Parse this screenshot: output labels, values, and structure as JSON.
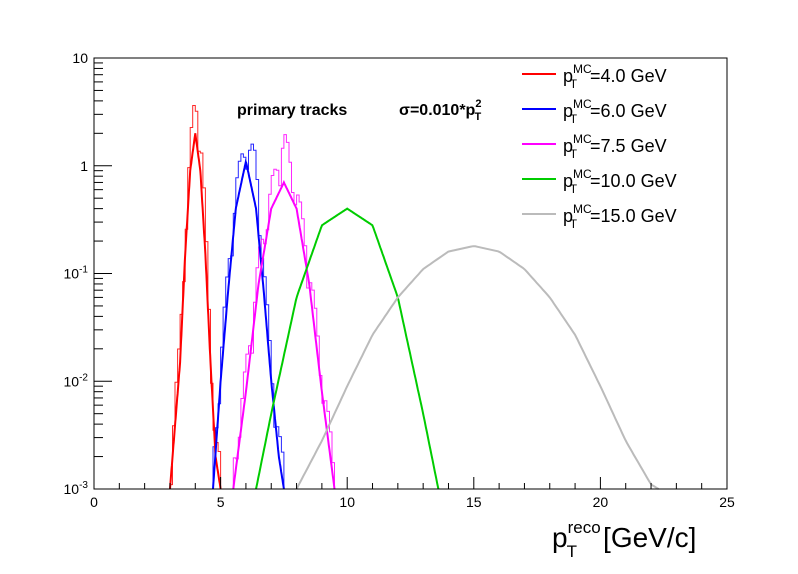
{
  "chart_data": {
    "type": "line",
    "title": "",
    "xlabel_main": "p",
    "xlabel_sup": "reco",
    "xlabel_sub": "T",
    "xlabel_unit": "[GeV/c]",
    "ylabel": "",
    "xlim": [
      0,
      25
    ],
    "ylim": [
      0.001,
      10
    ],
    "yscale": "log",
    "grid": false,
    "legend_position": "top-right",
    "x_ticks": [
      "0",
      "5",
      "10",
      "15",
      "20",
      "25"
    ],
    "y_ticks": [
      {
        "mant": "10",
        "exp": "",
        "value": 10
      },
      {
        "mant": "1",
        "exp": "",
        "value": 1
      },
      {
        "mant": "10",
        "exp": "-1",
        "value": 0.1
      },
      {
        "mant": "10",
        "exp": "-2",
        "value": 0.01
      },
      {
        "mant": "10",
        "exp": "-3",
        "value": 0.001
      }
    ],
    "annotations": {
      "primary": "primary tracks",
      "sigma_label": "σ=0.010*p",
      "sigma_sup": "2",
      "sigma_sub": "T"
    },
    "series": [
      {
        "name_main": "p",
        "name_sup": "MC",
        "name_sub": "T",
        "name_tail": "=4.0 GeV",
        "color": "#ff0000",
        "x": [
          3.0,
          3.4,
          3.6,
          3.8,
          4.0,
          4.2,
          4.4,
          4.6,
          4.8,
          5.0
        ],
        "y": [
          0.001,
          0.015,
          0.15,
          0.9,
          2.0,
          0.9,
          0.15,
          0.015,
          0.002,
          0.001
        ]
      },
      {
        "name_main": "p",
        "name_sup": "MC",
        "name_sub": "T",
        "name_tail": "=6.0 GeV",
        "color": "#0000ff",
        "x": [
          4.7,
          5.0,
          5.3,
          5.6,
          6.0,
          6.4,
          6.7,
          7.0,
          7.3,
          7.5
        ],
        "y": [
          0.001,
          0.01,
          0.07,
          0.4,
          1.1,
          0.4,
          0.07,
          0.01,
          0.002,
          0.001
        ]
      },
      {
        "name_main": "p",
        "name_sup": "MC",
        "name_sub": "T",
        "name_tail": "=7.5 GeV",
        "color": "#ff00ff",
        "x": [
          5.5,
          6.0,
          6.5,
          7.0,
          7.5,
          8.0,
          8.5,
          9.0,
          9.5
        ],
        "y": [
          0.001,
          0.008,
          0.08,
          0.4,
          0.7,
          0.4,
          0.08,
          0.008,
          0.001
        ]
      },
      {
        "name_main": "p",
        "name_sup": "MC",
        "name_sub": "T",
        "name_tail": "=10.0 GeV",
        "color": "#00cc00",
        "x": [
          6.4,
          7.0,
          8.0,
          9.0,
          10.0,
          11.0,
          12.0,
          13.0,
          13.6
        ],
        "y": [
          0.001,
          0.005,
          0.06,
          0.28,
          0.4,
          0.28,
          0.06,
          0.005,
          0.001
        ]
      },
      {
        "name_main": "p",
        "name_sup": "MC",
        "name_sub": "T",
        "name_tail": "=15.0 GeV",
        "color": "#bbbbbb",
        "x": [
          8.0,
          9.0,
          10.0,
          11.0,
          12.0,
          13.0,
          14.0,
          15.0,
          16.0,
          17.0,
          18.0,
          19.0,
          20.0,
          21.0,
          22.0,
          22.3
        ],
        "y": [
          0.001,
          0.0028,
          0.009,
          0.027,
          0.06,
          0.11,
          0.16,
          0.18,
          0.16,
          0.11,
          0.06,
          0.027,
          0.009,
          0.0028,
          0.0011,
          0.001
        ]
      }
    ]
  }
}
